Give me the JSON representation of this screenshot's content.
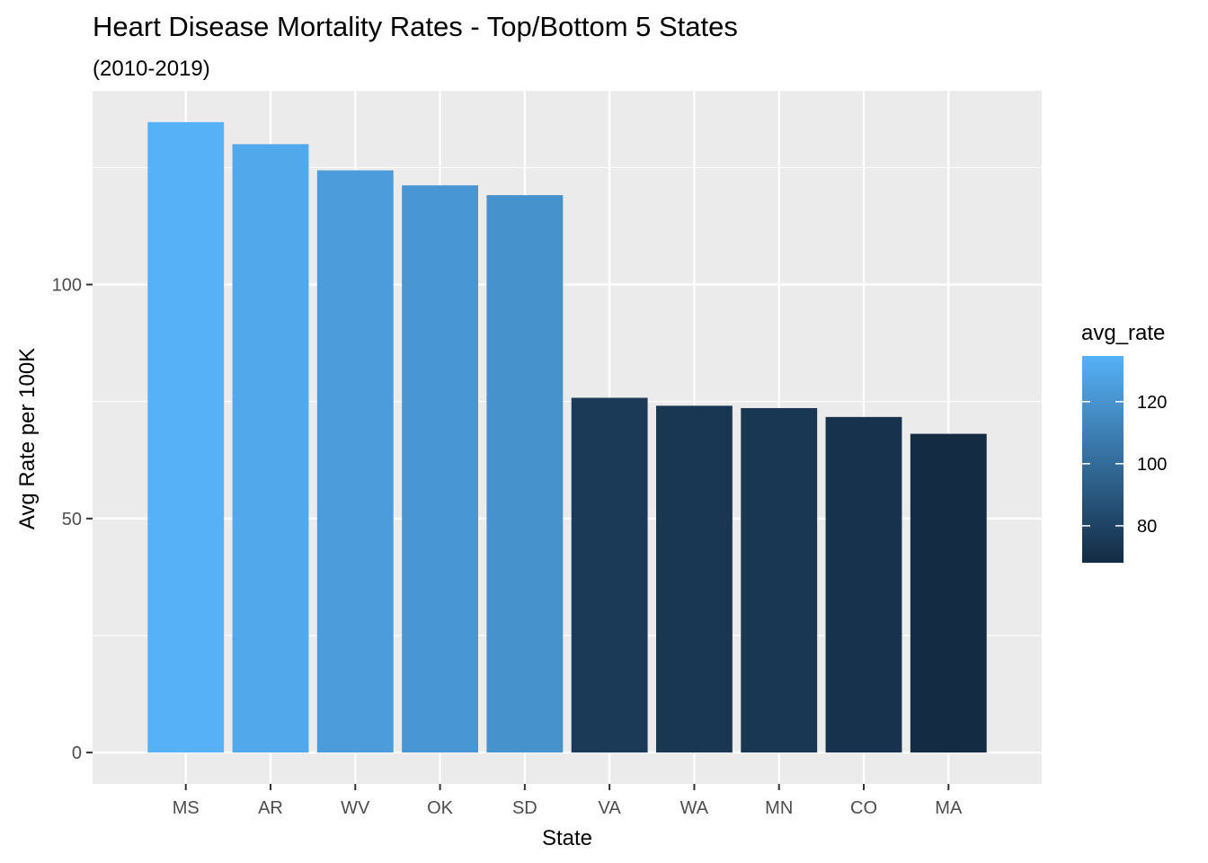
{
  "chart_data": {
    "type": "bar",
    "title": "Heart Disease Mortality Rates - Top/Bottom 5 States",
    "subtitle": "(2010-2019)",
    "xlabel": "State",
    "ylabel": "Avg Rate per 100K",
    "categories": [
      "MS",
      "AR",
      "WV",
      "OK",
      "SD",
      "VA",
      "WA",
      "MN",
      "CO",
      "MA"
    ],
    "values": [
      134.7,
      130.0,
      124.4,
      121.2,
      119.1,
      75.8,
      74.1,
      73.6,
      71.7,
      68.1
    ],
    "ylim": [
      -6.7,
      141.4
    ],
    "yticks": [
      0,
      50,
      100
    ],
    "grid": true,
    "legend": {
      "title": "avg_rate",
      "position": "right",
      "range": [
        68.1,
        134.7
      ],
      "ticks": [
        80,
        100,
        120
      ],
      "low_color": "#132B43",
      "high_color": "#56B1F7"
    },
    "colors": {
      "panel_background": "#EBEBEB",
      "gridline": "#FFFFFF"
    }
  }
}
